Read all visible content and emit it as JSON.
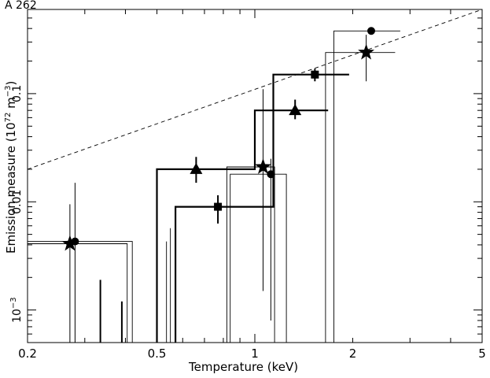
{
  "chart_data": {
    "type": "scatter",
    "title": "A 262",
    "xlabel": "Temperature (keV)",
    "ylabel_parts": {
      "pre": "Emission measure (10",
      "exp1": "72",
      "mid": " m",
      "exp2": "−3",
      "post": ")"
    },
    "x_scale": "log",
    "y_scale": "log",
    "xlim": [
      0.2,
      5
    ],
    "ylim": [
      0.0005,
      0.6
    ],
    "x_ticks": [
      {
        "value": 0.2,
        "label": "0.2"
      },
      {
        "value": 0.5,
        "label": "0.5"
      },
      {
        "value": 1,
        "label": "1"
      },
      {
        "value": 2,
        "label": "2"
      },
      {
        "value": 5,
        "label": "5"
      }
    ],
    "y_ticks": [
      {
        "value": 0.001,
        "label_base": "10",
        "label_exp": "−3"
      },
      {
        "value": 0.01,
        "label": "0.01"
      },
      {
        "value": 0.1,
        "label": "0.1"
      }
    ],
    "reference_line": {
      "style": "dashed",
      "points": [
        [
          0.2,
          0.02
        ],
        [
          5,
          0.6
        ]
      ]
    },
    "series": [
      {
        "marker": "star",
        "line": "thin",
        "steps": [
          [
            0.2,
            0.0041
          ],
          [
            0.405,
            0.0041
          ],
          [
            0.405,
            0.0005
          ],
          [
            0.82,
            0.0005
          ],
          [
            0.82,
            0.021
          ],
          [
            1.15,
            0.021
          ],
          [
            1.15,
            0.0005
          ],
          [
            1.65,
            0.0005
          ],
          [
            1.65,
            0.24
          ],
          [
            2.7,
            0.24
          ]
        ],
        "points": [
          {
            "x": 0.27,
            "y": 0.0041,
            "ylo": 0.0005,
            "yhi": 0.0095
          },
          {
            "x": 1.06,
            "y": 0.021,
            "ylo": 0.0015,
            "yhi": 0.11
          },
          {
            "x": 2.2,
            "y": 0.24,
            "ylo": 0.13,
            "yhi": 0.35
          }
        ]
      },
      {
        "marker": "circle",
        "line": "thin",
        "steps": [
          [
            0.2,
            0.0043
          ],
          [
            0.42,
            0.0043
          ],
          [
            0.42,
            0.0005
          ],
          [
            0.84,
            0.0005
          ],
          [
            0.84,
            0.018
          ],
          [
            1.25,
            0.018
          ],
          [
            1.25,
            0.0005
          ],
          [
            1.75,
            0.0005
          ],
          [
            1.75,
            0.38
          ],
          [
            2.8,
            0.38
          ]
        ],
        "points": [
          {
            "x": 0.28,
            "y": 0.0043,
            "ylo": 0.0005,
            "yhi": 0.015
          },
          {
            "x": 1.12,
            "y": 0.018,
            "ylo": 0.0008,
            "yhi": 0.025
          },
          {
            "x": 2.28,
            "y": 0.38,
            "ylo": 0.36,
            "yhi": 0.4
          }
        ]
      },
      {
        "marker": "triangle",
        "line": "thick",
        "steps": [
          [
            0.5,
            0.0005
          ],
          [
            0.5,
            0.02
          ],
          [
            1.0,
            0.02
          ],
          [
            1.0,
            0.07
          ],
          [
            1.68,
            0.07
          ]
        ],
        "points": [
          {
            "x": 0.66,
            "y": 0.02,
            "ylo": 0.015,
            "yhi": 0.026
          },
          {
            "x": 1.33,
            "y": 0.07,
            "ylo": 0.058,
            "yhi": 0.088
          }
        ]
      },
      {
        "marker": "square",
        "line": "thick",
        "steps": [
          [
            0.57,
            0.0005
          ],
          [
            0.57,
            0.009
          ],
          [
            1.14,
            0.009
          ],
          [
            1.14,
            0.15
          ],
          [
            1.95,
            0.15
          ]
        ],
        "points": [
          {
            "x": 0.77,
            "y": 0.009,
            "ylo": 0.0063,
            "yhi": 0.0115
          },
          {
            "x": 1.53,
            "y": 0.15,
            "ylo": 0.13,
            "yhi": 0.17
          }
        ]
      }
    ],
    "upper_limit_bars": [
      {
        "x": 0.335,
        "y": 0.0019,
        "weight": "thick"
      },
      {
        "x": 0.39,
        "y": 0.0012,
        "weight": "thick"
      },
      {
        "x": 0.535,
        "y": 0.0043,
        "weight": "thin"
      },
      {
        "x": 0.55,
        "y": 0.0057,
        "weight": "thin"
      }
    ]
  }
}
